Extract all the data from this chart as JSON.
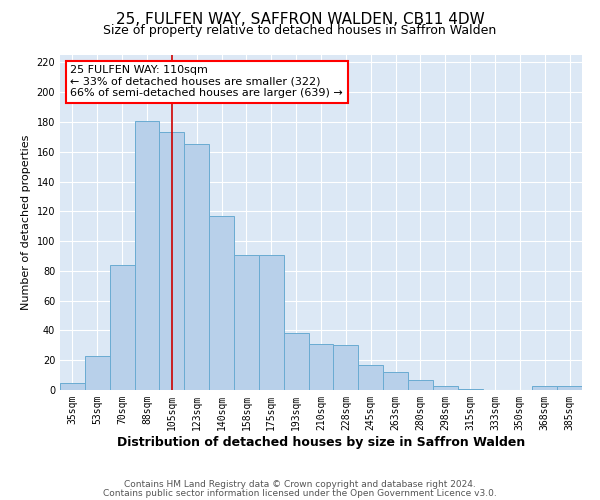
{
  "title": "25, FULFEN WAY, SAFFRON WALDEN, CB11 4DW",
  "subtitle": "Size of property relative to detached houses in Saffron Walden",
  "xlabel": "Distribution of detached houses by size in Saffron Walden",
  "ylabel": "Number of detached properties",
  "categories": [
    "35sqm",
    "53sqm",
    "70sqm",
    "88sqm",
    "105sqm",
    "123sqm",
    "140sqm",
    "158sqm",
    "175sqm",
    "193sqm",
    "210sqm",
    "228sqm",
    "245sqm",
    "263sqm",
    "280sqm",
    "298sqm",
    "315sqm",
    "333sqm",
    "350sqm",
    "368sqm",
    "385sqm"
  ],
  "values": [
    5,
    23,
    84,
    181,
    173,
    165,
    117,
    91,
    91,
    38,
    31,
    30,
    17,
    12,
    7,
    3,
    1,
    0,
    0,
    3,
    3
  ],
  "bar_color": "#b8d0ea",
  "bar_edge_color": "#6aabd2",
  "vline_x_index": 4,
  "vline_color": "#cc0000",
  "annotation_line1": "25 FULFEN WAY: 110sqm",
  "annotation_line2": "← 33% of detached houses are smaller (322)",
  "annotation_line3": "66% of semi-detached houses are larger (639) →",
  "annotation_box_color": "white",
  "annotation_box_edge_color": "red",
  "ylim": [
    0,
    225
  ],
  "yticks": [
    0,
    20,
    40,
    60,
    80,
    100,
    120,
    140,
    160,
    180,
    200,
    220
  ],
  "background_color": "#dce8f5",
  "grid_color": "#ffffff",
  "footer_line1": "Contains HM Land Registry data © Crown copyright and database right 2024.",
  "footer_line2": "Contains public sector information licensed under the Open Government Licence v3.0.",
  "title_fontsize": 11,
  "subtitle_fontsize": 9,
  "xlabel_fontsize": 9,
  "ylabel_fontsize": 8,
  "tick_fontsize": 7,
  "annotation_fontsize": 8,
  "footer_fontsize": 6.5
}
